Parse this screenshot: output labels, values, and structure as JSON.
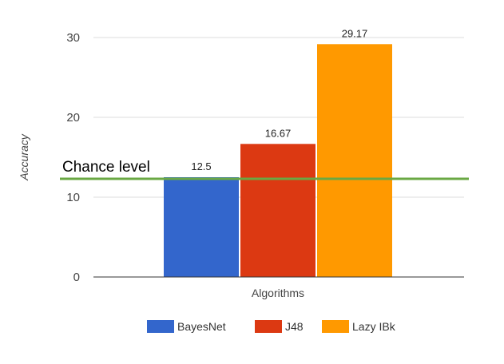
{
  "chart_data": {
    "type": "bar",
    "title": "",
    "xlabel": "Algorithms",
    "ylabel": "Accuracy",
    "ylim": [
      0,
      30
    ],
    "yticks": [
      0,
      10,
      20,
      30
    ],
    "grid": true,
    "legend_position": "bottom",
    "series": [
      {
        "name": "BayesNet",
        "values": [
          12.5
        ],
        "color": "#3366cc",
        "label": "12.5"
      },
      {
        "name": "J48",
        "values": [
          16.67
        ],
        "color": "#dc3912",
        "label": "16.67"
      },
      {
        "name": "Lazy IBk",
        "values": [
          29.17
        ],
        "color": "#ff9900",
        "label": "29.17"
      }
    ],
    "reference_line": {
      "label": "Chance level",
      "value": 12.5,
      "color": "#6aa843"
    }
  }
}
